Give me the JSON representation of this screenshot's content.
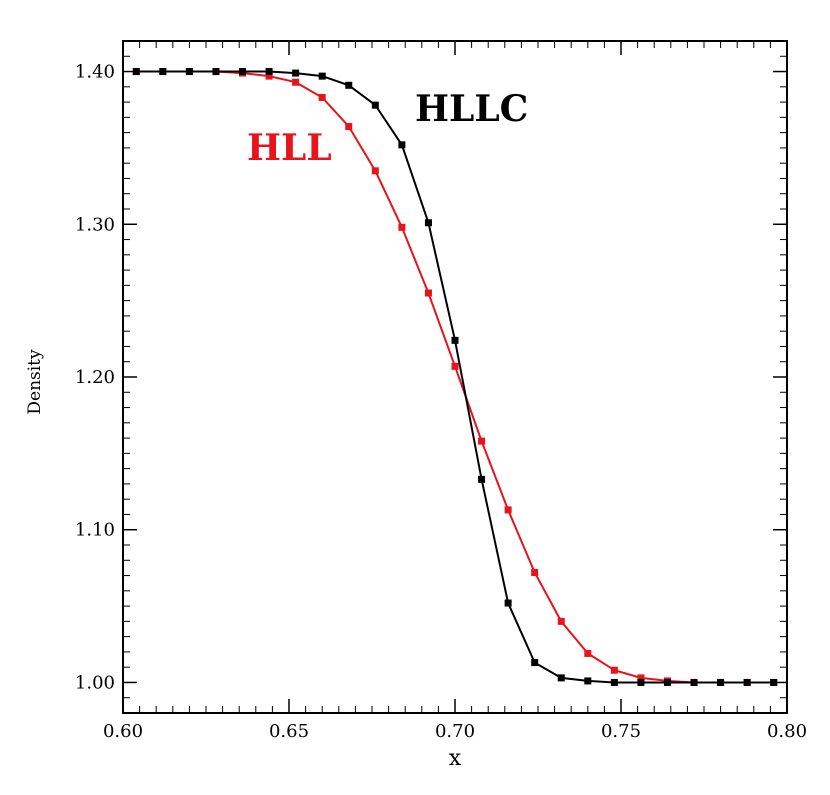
{
  "chart_data": {
    "type": "line",
    "title": "",
    "xlabel": "x",
    "ylabel": "Density",
    "xlim": [
      0.6,
      0.8
    ],
    "ylim": [
      0.98,
      1.42
    ],
    "x_ticks": [
      0.6,
      0.65,
      0.7,
      0.75,
      0.8
    ],
    "x_tick_labels": [
      "0.60",
      "0.65",
      "0.70",
      "0.75",
      "0.80"
    ],
    "y_ticks": [
      1.0,
      1.1,
      1.2,
      1.3,
      1.4
    ],
    "y_tick_labels": [
      "1.00",
      "1.10",
      "1.20",
      "1.30",
      "1.40"
    ],
    "grid": false,
    "series": [
      {
        "name": "HLL",
        "color": "#e8131b",
        "marker": "square",
        "x": [
          0.604,
          0.612,
          0.62,
          0.628,
          0.636,
          0.644,
          0.652,
          0.66,
          0.668,
          0.676,
          0.684,
          0.692,
          0.7,
          0.708,
          0.716,
          0.724,
          0.732,
          0.74,
          0.748,
          0.756,
          0.764,
          0.772,
          0.78,
          0.788,
          0.796
        ],
        "values": [
          1.4,
          1.4,
          1.4,
          1.4,
          1.399,
          1.397,
          1.393,
          1.383,
          1.364,
          1.335,
          1.298,
          1.255,
          1.207,
          1.158,
          1.113,
          1.072,
          1.04,
          1.019,
          1.008,
          1.003,
          1.001,
          1.0,
          1.0,
          1.0,
          1.0
        ]
      },
      {
        "name": "HLLC",
        "color": "#000000",
        "marker": "square",
        "x": [
          0.604,
          0.612,
          0.62,
          0.628,
          0.636,
          0.644,
          0.652,
          0.66,
          0.668,
          0.676,
          0.684,
          0.692,
          0.7,
          0.708,
          0.716,
          0.724,
          0.732,
          0.74,
          0.748,
          0.756,
          0.764,
          0.772,
          0.78,
          0.788,
          0.796
        ],
        "values": [
          1.4,
          1.4,
          1.4,
          1.4,
          1.4,
          1.4,
          1.399,
          1.397,
          1.391,
          1.378,
          1.352,
          1.301,
          1.224,
          1.133,
          1.052,
          1.013,
          1.003,
          1.001,
          1.0,
          1.0,
          1.0,
          1.0,
          1.0,
          1.0,
          1.0
        ]
      }
    ]
  }
}
